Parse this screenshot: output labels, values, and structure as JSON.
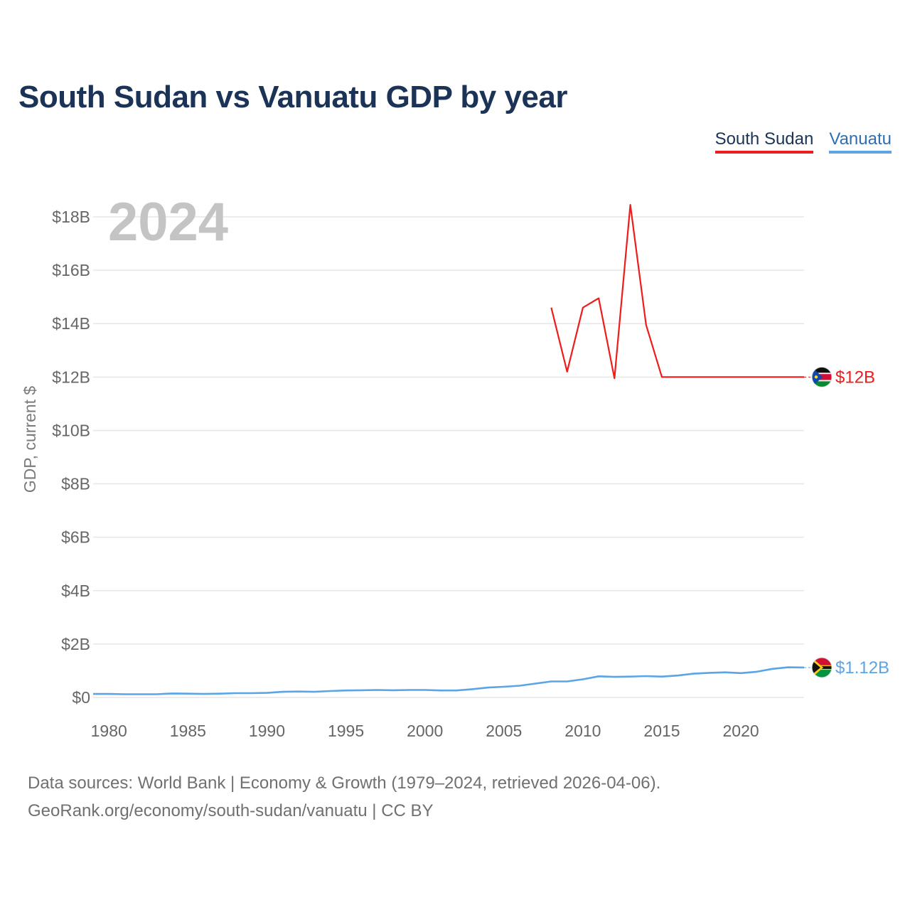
{
  "title": "South Sudan vs Vanuatu GDP by year",
  "legend": [
    {
      "name": "South Sudan",
      "color": "#ee1c1c"
    },
    {
      "name": "Vanuatu",
      "color": "#5ba4e6"
    }
  ],
  "footer": {
    "line1": "Data sources: World Bank | Economy & Growth (1979–2024, retrieved 2026-04-06).",
    "line2": "GeoRank.org/economy/south-sudan/vanuatu | CC BY"
  },
  "chart_data": {
    "type": "line",
    "title": "South Sudan vs Vanuatu GDP by year",
    "current_year": "2024",
    "xlabel": "",
    "ylabel": "GDP, current $",
    "xlim": [
      1979,
      2024
    ],
    "ylim": [
      0,
      18
    ],
    "y_unit": "billion USD",
    "x_ticks": [
      1980,
      1985,
      1990,
      1995,
      2000,
      2005,
      2010,
      2015,
      2020
    ],
    "y_ticks": [
      {
        "value": 0,
        "label": "$0"
      },
      {
        "value": 2,
        "label": "$2B"
      },
      {
        "value": 4,
        "label": "$4B"
      },
      {
        "value": 6,
        "label": "$6B"
      },
      {
        "value": 8,
        "label": "$8B"
      },
      {
        "value": 10,
        "label": "$10B"
      },
      {
        "value": 12,
        "label": "$12B"
      },
      {
        "value": 14,
        "label": "$14B"
      },
      {
        "value": 16,
        "label": "$16B"
      },
      {
        "value": 18,
        "label": "$18B"
      }
    ],
    "grid": true,
    "series": [
      {
        "name": "South Sudan",
        "color": "#ee1c1c",
        "end_label": "$12B",
        "x": [
          2008,
          2009,
          2010,
          2011,
          2012,
          2013,
          2014,
          2015,
          2016,
          2017,
          2018,
          2019,
          2020,
          2021,
          2022,
          2023,
          2024
        ],
        "values": [
          14.6,
          12.2,
          14.6,
          14.95,
          11.95,
          18.45,
          13.95,
          12.0,
          12.0,
          12.0,
          12.0,
          12.0,
          12.0,
          12.0,
          12.0,
          12.0,
          12.0
        ]
      },
      {
        "name": "Vanuatu",
        "color": "#5ba4e6",
        "end_label": "$1.12B",
        "x": [
          1979,
          1980,
          1981,
          1982,
          1983,
          1984,
          1985,
          1986,
          1987,
          1988,
          1989,
          1990,
          1991,
          1992,
          1993,
          1994,
          1995,
          1996,
          1997,
          1998,
          1999,
          2000,
          2001,
          2002,
          2003,
          2004,
          2005,
          2006,
          2007,
          2008,
          2009,
          2010,
          2011,
          2012,
          2013,
          2014,
          2015,
          2016,
          2017,
          2018,
          2019,
          2020,
          2021,
          2022,
          2023,
          2024
        ],
        "values": [
          0.13,
          0.13,
          0.12,
          0.12,
          0.12,
          0.15,
          0.14,
          0.13,
          0.14,
          0.16,
          0.16,
          0.17,
          0.21,
          0.22,
          0.21,
          0.24,
          0.26,
          0.27,
          0.28,
          0.27,
          0.28,
          0.28,
          0.26,
          0.26,
          0.31,
          0.37,
          0.4,
          0.44,
          0.52,
          0.6,
          0.6,
          0.68,
          0.79,
          0.77,
          0.78,
          0.8,
          0.78,
          0.82,
          0.89,
          0.92,
          0.94,
          0.91,
          0.96,
          1.07,
          1.13,
          1.12
        ]
      }
    ]
  }
}
